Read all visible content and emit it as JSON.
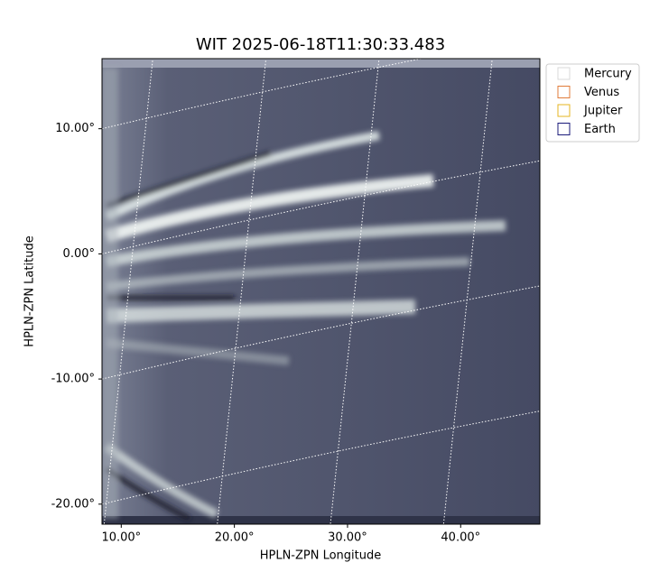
{
  "chart_data": {
    "type": "image",
    "title": "WIT 2025-06-18T11:30:33.483",
    "xlabel": "HPLN-ZPN Longitude",
    "ylabel": "HPLN-ZPN Latitude",
    "xlim": [
      8.3,
      47.0
    ],
    "ylim": [
      -21.6,
      15.6
    ],
    "xticks": [
      {
        "value": 10,
        "label": "10.00°"
      },
      {
        "value": 20,
        "label": "20.00°"
      },
      {
        "value": 30,
        "label": "30.00°"
      },
      {
        "value": 40,
        "label": "40.00°"
      }
    ],
    "yticks": [
      {
        "value": 10,
        "label": "10.00°"
      },
      {
        "value": 0,
        "label": "0.00°"
      },
      {
        "value": -10,
        "label": "-10.00°"
      },
      {
        "value": -20,
        "label": "-20.00°"
      }
    ],
    "grid": true,
    "legend_position": "outside-upper-right",
    "legend": [
      {
        "name": "Mercury",
        "color": "#d9d9d9"
      },
      {
        "name": "Venus",
        "color": "#e07b39"
      },
      {
        "name": "Jupiter",
        "color": "#e6b422"
      },
      {
        "name": "Earth",
        "color": "#1a1a7a"
      }
    ]
  }
}
